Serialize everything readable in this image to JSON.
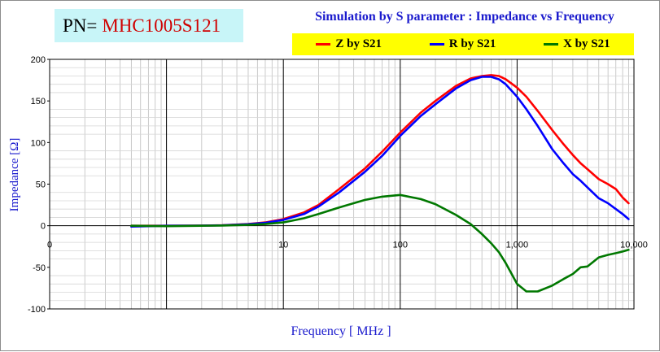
{
  "part": {
    "prefix": "PN=",
    "number": "MHC1005S121"
  },
  "colors": {
    "z": "#ff0000",
    "r": "#0000ff",
    "x": "#007800",
    "title": "#1a1acd",
    "pn_value": "#d00000",
    "legend_bg": "#ffff00",
    "pn_bg": "#c8f5f8"
  },
  "chart_data": {
    "type": "line",
    "title": "Simulation by S parameter : Impedance vs Frequency",
    "xlabel": "Frequency [ MHz ]",
    "ylabel": "Impedance [Ω]",
    "xscale": "log",
    "xlim": [
      0.1,
      10000
    ],
    "ylim": [
      -100,
      200
    ],
    "grid": true,
    "legend_position": "top-right",
    "x_ticks": [
      {
        "value": 0.1,
        "label": "0"
      },
      {
        "value": 10,
        "label": "10"
      },
      {
        "value": 100,
        "label": "100"
      },
      {
        "value": 1000,
        "label": "1,000"
      },
      {
        "value": 10000,
        "label": "10,000"
      }
    ],
    "y_ticks": [
      {
        "value": 200,
        "label": "200"
      },
      {
        "value": 150,
        "label": "150"
      },
      {
        "value": 100,
        "label": "100"
      },
      {
        "value": 50,
        "label": "50"
      },
      {
        "value": 0,
        "label": "0"
      },
      {
        "value": -50,
        "label": "-50"
      },
      {
        "value": -100,
        "label": "-100"
      }
    ],
    "series": [
      {
        "name": "Z by S21",
        "color": "#ff0000",
        "x": [
          0.5,
          1,
          2,
          3,
          5,
          7,
          10,
          15,
          20,
          30,
          50,
          70,
          100,
          150,
          200,
          300,
          400,
          500,
          600,
          700,
          800,
          1000,
          1200,
          1500,
          2000,
          2500,
          3000,
          3500,
          4000,
          5000,
          6000,
          7000,
          8000,
          9000
        ],
        "values": [
          0,
          0,
          0.2,
          0.6,
          2,
          4,
          8,
          16,
          25,
          44,
          69,
          89,
          112,
          136,
          150,
          168,
          177,
          180,
          181,
          180,
          176,
          166,
          155,
          138,
          115,
          98,
          85,
          75,
          68,
          56,
          50,
          44,
          34,
          27
        ]
      },
      {
        "name": "R by S21",
        "color": "#0000ff",
        "x": [
          0.5,
          1,
          2,
          3,
          5,
          7,
          10,
          15,
          20,
          30,
          50,
          70,
          100,
          150,
          200,
          300,
          400,
          500,
          600,
          700,
          800,
          1000,
          1200,
          1500,
          2000,
          2500,
          3000,
          3500,
          4000,
          5000,
          6000,
          7000,
          8000,
          9000
        ],
        "values": [
          -1,
          0,
          0.1,
          0.5,
          1.8,
          3.5,
          7,
          14,
          23,
          40,
          65,
          84,
          108,
          132,
          146,
          165,
          175,
          179,
          179,
          176,
          170,
          155,
          140,
          120,
          92,
          75,
          62,
          54,
          46,
          33,
          27,
          20,
          14,
          8
        ]
      },
      {
        "name": "X by S21",
        "color": "#007800",
        "x": [
          0.5,
          1,
          2,
          3,
          5,
          7,
          10,
          15,
          20,
          30,
          50,
          70,
          100,
          150,
          200,
          300,
          400,
          500,
          600,
          700,
          800,
          1000,
          1200,
          1500,
          2000,
          2500,
          3000,
          3500,
          4000,
          5000,
          6000,
          7000,
          8000,
          9000
        ],
        "values": [
          0,
          -0.5,
          0,
          0.3,
          1,
          2,
          4,
          9,
          14,
          22,
          31,
          35,
          37,
          32,
          26,
          13,
          2,
          -10,
          -21,
          -32,
          -45,
          -70,
          -79,
          -79,
          -72,
          -64,
          -58,
          -50,
          -49,
          -38,
          -35,
          -33,
          -31,
          -29
        ]
      }
    ]
  }
}
